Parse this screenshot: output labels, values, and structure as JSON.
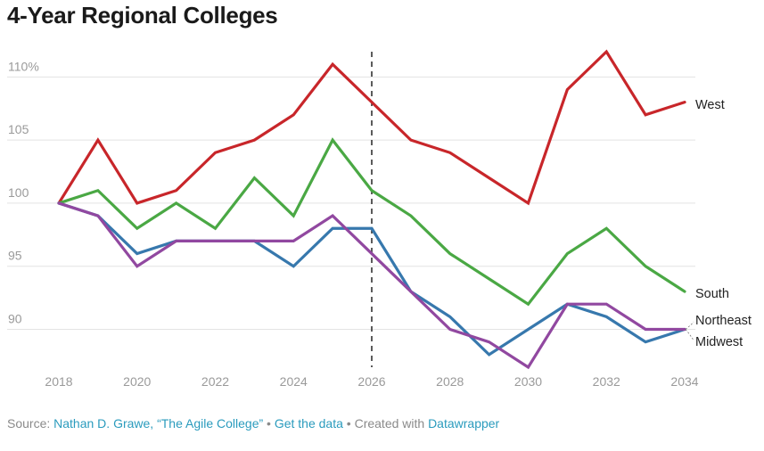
{
  "title": "4-Year Regional Colleges",
  "footer": {
    "source_label": "Source:",
    "source_link": "Nathan D. Grawe, “The Agile College”",
    "separator": "•",
    "data_link": "Get the data",
    "created_label": "Created with",
    "created_link": "Datawrapper"
  },
  "chart_data": {
    "type": "line",
    "title": "4-Year Regional Colleges",
    "xlabel": "",
    "ylabel": "",
    "x": [
      2018,
      2019,
      2020,
      2021,
      2022,
      2023,
      2024,
      2025,
      2026,
      2027,
      2028,
      2029,
      2030,
      2031,
      2032,
      2033,
      2034
    ],
    "xlim": [
      2018,
      2034
    ],
    "ylim": [
      87,
      112
    ],
    "x_ticks": [
      "2018",
      "2020",
      "2022",
      "2024",
      "2026",
      "2028",
      "2030",
      "2032",
      "2034"
    ],
    "y_ticks": [
      {
        "value": 90,
        "label": "90"
      },
      {
        "value": 95,
        "label": "95"
      },
      {
        "value": 100,
        "label": "100"
      },
      {
        "value": 105,
        "label": "105"
      },
      {
        "value": 110,
        "label": "110%"
      }
    ],
    "grid": true,
    "reference_line": {
      "x": 2026,
      "style": "dashed"
    },
    "series": [
      {
        "name": "West",
        "color": "#c8262a",
        "values": [
          100,
          105,
          100,
          101,
          104,
          105,
          107,
          111,
          108,
          105,
          104,
          102,
          100,
          109,
          112,
          107,
          108
        ]
      },
      {
        "name": "South",
        "color": "#4aa844",
        "values": [
          100,
          101,
          98,
          100,
          98,
          102,
          99,
          105,
          101,
          99,
          96,
          94,
          92,
          96,
          98,
          95,
          93
        ]
      },
      {
        "name": "Northeast",
        "color": "#3778ad",
        "values": [
          100,
          99,
          96,
          97,
          97,
          97,
          95,
          98,
          98,
          93,
          91,
          88,
          90,
          92,
          91,
          89,
          90
        ]
      },
      {
        "name": "Midwest",
        "color": "#9148a0",
        "values": [
          100,
          99,
          95,
          97,
          97,
          97,
          97,
          99,
          96,
          93,
          90,
          89,
          87,
          92,
          92,
          90,
          90
        ]
      }
    ]
  }
}
